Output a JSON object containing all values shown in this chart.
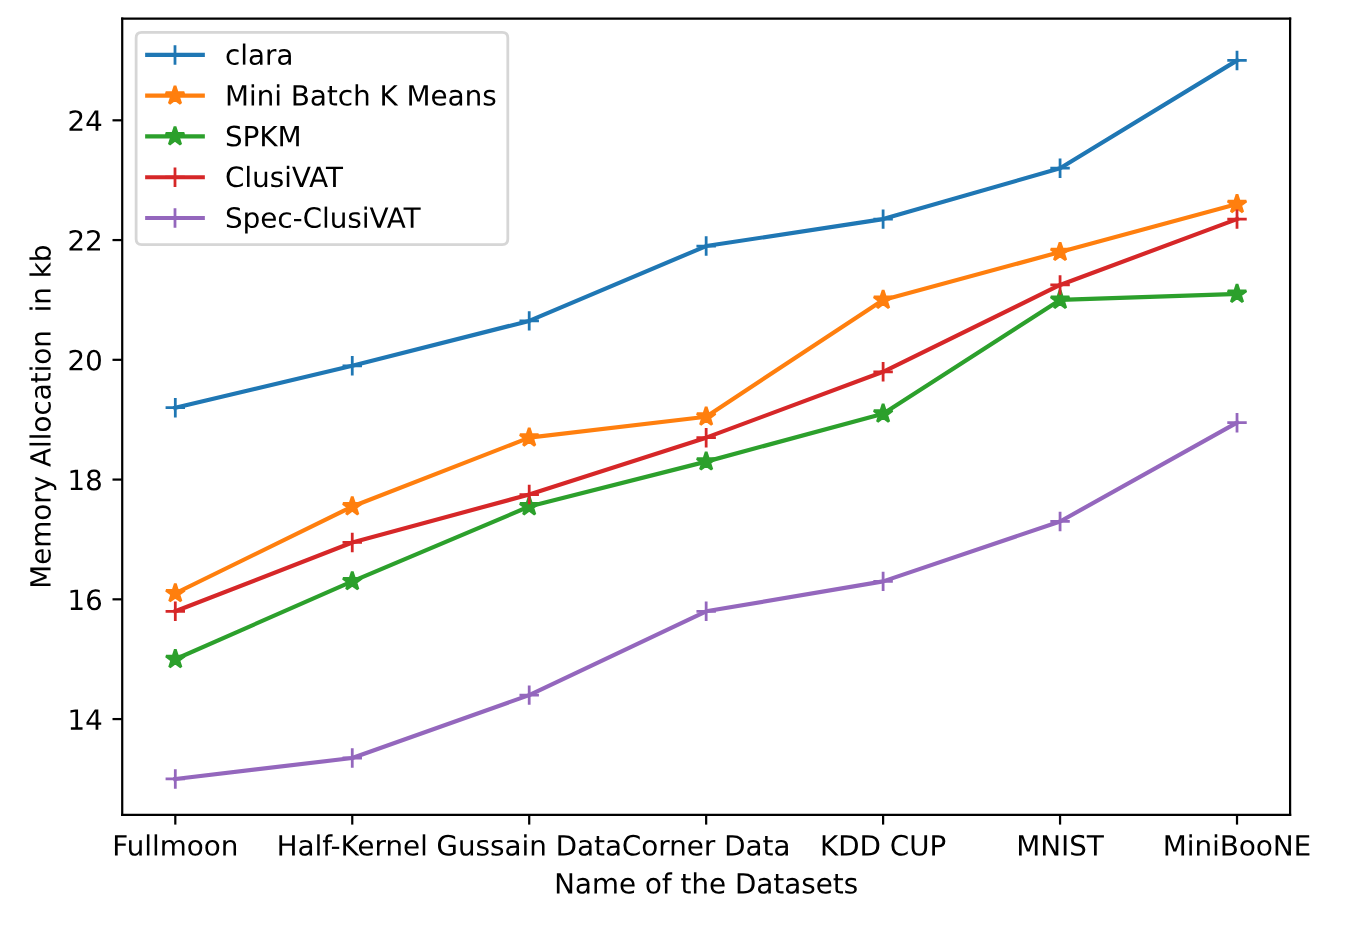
{
  "chart_data": {
    "type": "line",
    "xlabel": "Name of the Datasets",
    "ylabel": "Memory Allocation  in kb",
    "categories": [
      "Fullmoon",
      "Half-Kernel",
      "Gussain Data",
      "Corner Data",
      "KDD CUP",
      "MNIST",
      "MiniBooNE"
    ],
    "series": [
      {
        "name": "clara",
        "color": "#1f77b4",
        "marker": "cross",
        "values": [
          19.2,
          19.9,
          20.65,
          21.9,
          22.35,
          23.2,
          25.0
        ]
      },
      {
        "name": "Mini Batch K Means",
        "color": "#ff7f0e",
        "marker": "star",
        "values": [
          16.1,
          17.55,
          18.7,
          19.05,
          21.0,
          21.8,
          22.6
        ]
      },
      {
        "name": "SPKM",
        "color": "#2ca02c",
        "marker": "star",
        "values": [
          15.0,
          16.3,
          17.55,
          18.3,
          19.1,
          21.0,
          21.1
        ]
      },
      {
        "name": "ClusiVAT",
        "color": "#d62728",
        "marker": "cross",
        "values": [
          15.8,
          16.95,
          17.75,
          18.7,
          19.8,
          21.25,
          22.35
        ]
      },
      {
        "name": "Spec-ClusiVAT",
        "color": "#9467bd",
        "marker": "cross",
        "values": [
          13.0,
          13.35,
          14.4,
          15.8,
          16.3,
          17.3,
          18.95
        ]
      }
    ],
    "ylim": [
      12.4,
      25.7
    ],
    "yticks": [
      14,
      16,
      18,
      20,
      22,
      24
    ],
    "grid": false,
    "legend": "top left",
    "line_style": "solid"
  }
}
